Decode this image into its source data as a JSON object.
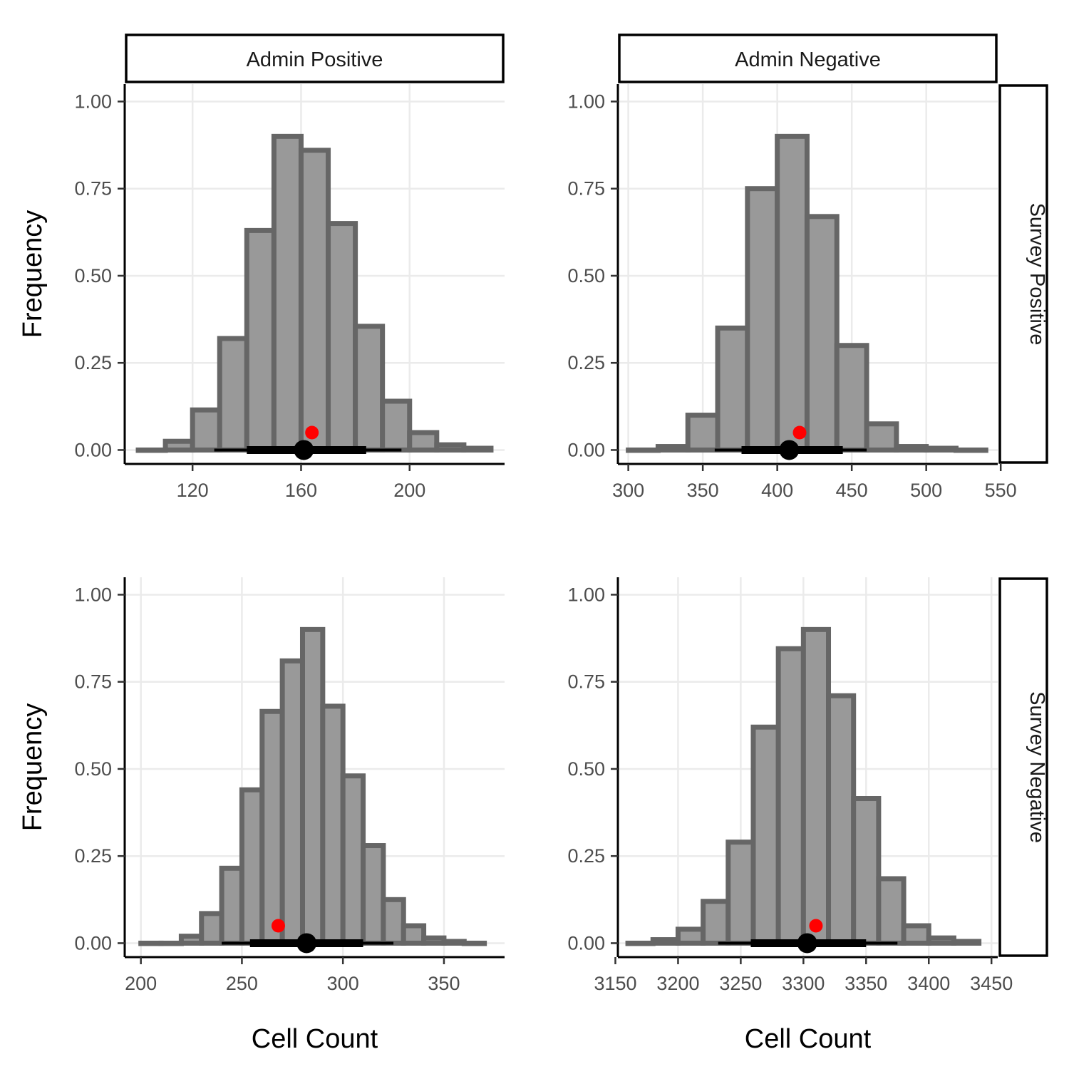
{
  "colors": {
    "bar_fill": "#999999",
    "bar_stroke": "#666666",
    "grid": "#ebebeb",
    "observed_point": "#ff0000",
    "interval": "#000000"
  },
  "chart_data": [
    {
      "type": "bar",
      "facet_col": "Admin Positive",
      "facet_row": "Survey Positive",
      "xlabel": "",
      "ylabel": "Frequency",
      "xlim": [
        95,
        235
      ],
      "ylim": [
        -0.04,
        1.05
      ],
      "x_ticks": [
        120,
        160,
        200
      ],
      "y_ticks": [
        "0.00",
        "0.25",
        "0.50",
        "0.75",
        "1.00"
      ],
      "bin_edges": [
        100,
        110,
        120,
        130,
        140,
        150,
        160,
        170,
        180,
        190,
        200,
        210,
        220,
        230
      ],
      "values": [
        0.0,
        0.025,
        0.115,
        0.32,
        0.63,
        0.9,
        0.86,
        0.65,
        0.355,
        0.14,
        0.05,
        0.015,
        0.005
      ],
      "observed": 164,
      "point_estimate": 161,
      "interval_inner": [
        140,
        184
      ],
      "interval_outer": [
        128,
        197
      ]
    },
    {
      "type": "bar",
      "facet_col": "Admin Negative",
      "facet_row": "Survey Positive",
      "xlabel": "",
      "ylabel": "",
      "xlim": [
        293,
        548
      ],
      "ylim": [
        -0.04,
        1.05
      ],
      "x_ticks": [
        300,
        350,
        400,
        450,
        500,
        550
      ],
      "y_ticks": [
        "0.00",
        "0.25",
        "0.50",
        "0.75",
        "1.00"
      ],
      "bin_edges": [
        300,
        320,
        340,
        360,
        380,
        400,
        420,
        440,
        460,
        480,
        500,
        520,
        540
      ],
      "values": [
        0.0,
        0.01,
        0.1,
        0.35,
        0.75,
        0.9,
        0.67,
        0.3,
        0.075,
        0.01,
        0.005,
        0.0
      ],
      "observed": 415,
      "point_estimate": 408,
      "interval_inner": [
        376,
        444
      ],
      "interval_outer": [
        358,
        460
      ]
    },
    {
      "type": "bar",
      "facet_col": "Admin Positive",
      "facet_row": "Survey Negative",
      "xlabel": "Cell Count",
      "ylabel": "Frequency",
      "xlim": [
        192,
        380
      ],
      "ylim": [
        -0.04,
        1.05
      ],
      "x_ticks": [
        200,
        250,
        300,
        350
      ],
      "y_ticks": [
        "0.00",
        "0.25",
        "0.50",
        "0.75",
        "1.00"
      ],
      "bin_edges": [
        200,
        210,
        220,
        230,
        240,
        250,
        260,
        270,
        280,
        290,
        300,
        310,
        320,
        330,
        340,
        350,
        360,
        370
      ],
      "values": [
        0.0,
        0.0,
        0.02,
        0.085,
        0.215,
        0.44,
        0.665,
        0.81,
        0.9,
        0.68,
        0.48,
        0.28,
        0.125,
        0.05,
        0.015,
        0.005,
        0.0
      ],
      "observed": 268,
      "point_estimate": 282,
      "interval_inner": [
        254,
        310
      ],
      "interval_outer": [
        240,
        325
      ]
    },
    {
      "type": "bar",
      "facet_col": "Admin Negative",
      "facet_row": "Survey Negative",
      "xlabel": "Cell Count",
      "ylabel": "",
      "xlim": [
        3152,
        3455
      ],
      "ylim": [
        -0.04,
        1.05
      ],
      "x_ticks": [
        3150,
        3200,
        3250,
        3300,
        3350,
        3400,
        3450
      ],
      "y_ticks": [
        "0.00",
        "0.25",
        "0.50",
        "0.75",
        "1.00"
      ],
      "bin_edges": [
        3160,
        3180,
        3200,
        3220,
        3240,
        3260,
        3280,
        3300,
        3320,
        3340,
        3360,
        3380,
        3400,
        3420,
        3440
      ],
      "values": [
        0.0,
        0.01,
        0.04,
        0.12,
        0.29,
        0.62,
        0.845,
        0.9,
        0.71,
        0.415,
        0.185,
        0.05,
        0.015,
        0.005
      ],
      "observed": 3310,
      "point_estimate": 3303,
      "interval_inner": [
        3258,
        3350
      ],
      "interval_outer": [
        3232,
        3375
      ]
    }
  ]
}
